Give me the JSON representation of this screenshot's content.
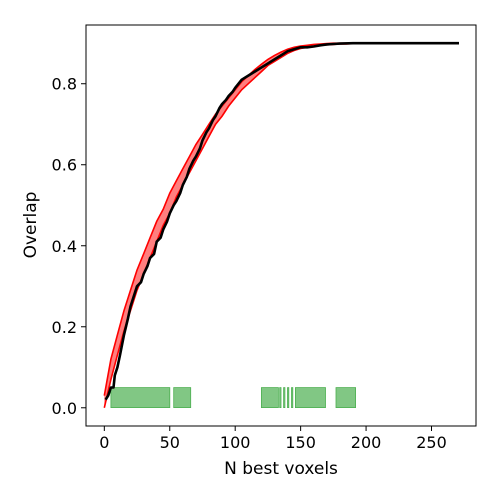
{
  "chart_data": {
    "type": "line",
    "title": "",
    "xlabel": "N best voxels",
    "ylabel": "Overlap",
    "xlim": [
      -14,
      284
    ],
    "ylim": [
      -0.045,
      0.945
    ],
    "x_ticks": [
      0,
      50,
      100,
      150,
      200,
      250
    ],
    "x_tick_labels": [
      "0",
      "50",
      "100",
      "150",
      "200",
      "250"
    ],
    "y_ticks": [
      0.0,
      0.2,
      0.4,
      0.6,
      0.8
    ],
    "y_tick_labels": [
      "0.0",
      "0.2",
      "0.4",
      "0.6",
      "0.8"
    ],
    "grid": false,
    "legend": "none",
    "colors": {
      "observed": "#000000",
      "band_line": "#ff0000",
      "band_fill": "#ff0000",
      "significance": "#4caf50"
    },
    "series": [
      {
        "role": "observed",
        "x": [
          1,
          3,
          5,
          7,
          8,
          10,
          12,
          15,
          18,
          20,
          22,
          25,
          28,
          30,
          33,
          35,
          38,
          40,
          43,
          45,
          48,
          50,
          53,
          55,
          58,
          60,
          63,
          65,
          68,
          70,
          73,
          75,
          78,
          80,
          83,
          85,
          88,
          90,
          93,
          95,
          98,
          100,
          105,
          110,
          115,
          120,
          125,
          130,
          135,
          140,
          145,
          150,
          155,
          160,
          165,
          170,
          175,
          180,
          190,
          200,
          220,
          240,
          260,
          271
        ],
        "y": [
          0.02,
          0.03,
          0.05,
          0.05,
          0.08,
          0.1,
          0.13,
          0.18,
          0.22,
          0.25,
          0.27,
          0.3,
          0.31,
          0.33,
          0.35,
          0.37,
          0.38,
          0.41,
          0.42,
          0.44,
          0.46,
          0.48,
          0.5,
          0.51,
          0.53,
          0.55,
          0.57,
          0.59,
          0.61,
          0.62,
          0.64,
          0.66,
          0.68,
          0.69,
          0.71,
          0.72,
          0.74,
          0.75,
          0.76,
          0.77,
          0.78,
          0.79,
          0.81,
          0.82,
          0.83,
          0.84,
          0.85,
          0.86,
          0.87,
          0.88,
          0.885,
          0.89,
          0.89,
          0.892,
          0.895,
          0.897,
          0.898,
          0.899,
          0.9,
          0.9,
          0.9,
          0.9,
          0.9,
          0.9
        ]
      },
      {
        "role": "null-band",
        "x": [
          0,
          5,
          10,
          15,
          20,
          25,
          30,
          35,
          40,
          45,
          50,
          55,
          60,
          65,
          70,
          75,
          80,
          85,
          90,
          95,
          100,
          105,
          110,
          115,
          120,
          125,
          130,
          135,
          140,
          145,
          150,
          155,
          160,
          165,
          170,
          175,
          180,
          185,
          190,
          193
        ],
        "lower": [
          0.0,
          0.07,
          0.13,
          0.19,
          0.24,
          0.29,
          0.33,
          0.37,
          0.41,
          0.45,
          0.48,
          0.52,
          0.55,
          0.58,
          0.61,
          0.64,
          0.67,
          0.7,
          0.72,
          0.745,
          0.765,
          0.785,
          0.8,
          0.815,
          0.83,
          0.845,
          0.855,
          0.865,
          0.875,
          0.882,
          0.887,
          0.89,
          0.893,
          0.895,
          0.896,
          0.897,
          0.898,
          0.898,
          0.899,
          0.899
        ],
        "upper": [
          0.03,
          0.12,
          0.18,
          0.24,
          0.29,
          0.34,
          0.38,
          0.42,
          0.46,
          0.49,
          0.53,
          0.56,
          0.59,
          0.62,
          0.65,
          0.675,
          0.7,
          0.725,
          0.745,
          0.765,
          0.785,
          0.805,
          0.82,
          0.835,
          0.848,
          0.86,
          0.87,
          0.878,
          0.885,
          0.89,
          0.893,
          0.895,
          0.897,
          0.898,
          0.899,
          0.9,
          0.9,
          0.9,
          0.9,
          0.9
        ]
      }
    ],
    "significance_marks": {
      "y": 0.025,
      "ranges": [
        [
          5,
          50
        ],
        [
          53,
          66
        ],
        [
          120,
          133
        ],
        [
          134,
          135
        ],
        [
          137,
          138
        ],
        [
          140,
          141
        ],
        [
          143,
          144
        ],
        [
          146,
          169
        ],
        [
          177,
          192
        ]
      ]
    }
  }
}
